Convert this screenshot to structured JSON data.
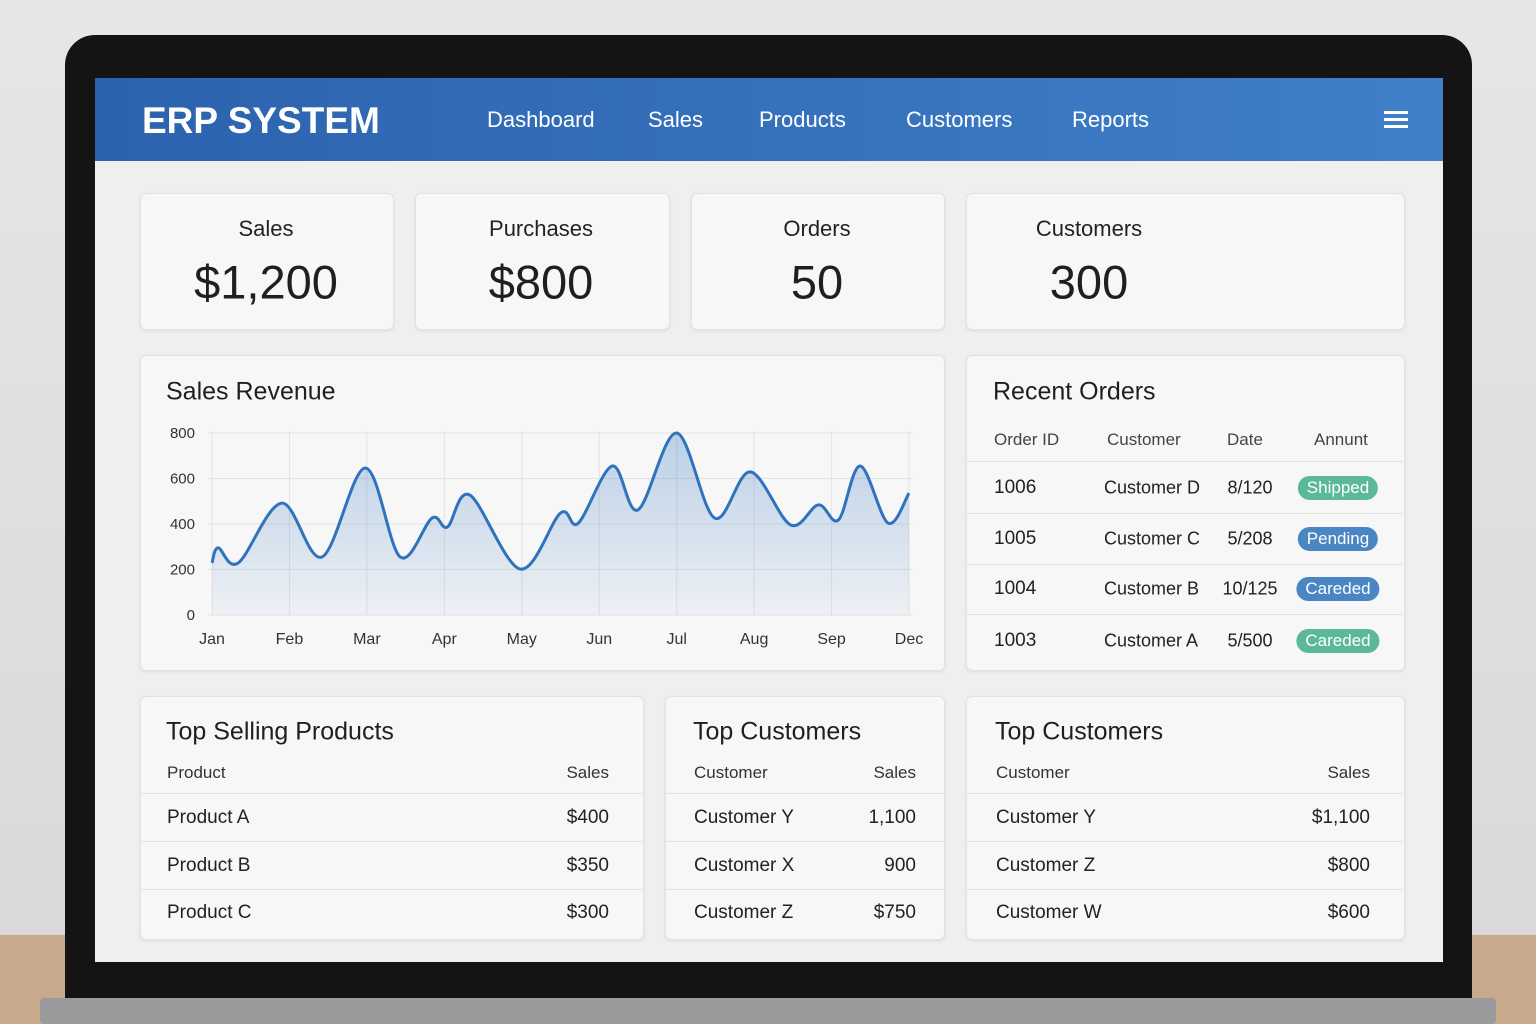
{
  "header": {
    "title": "ERP SYSTEM",
    "nav": [
      "Dashboard",
      "Sales",
      "Products",
      "Customers",
      "Reports"
    ]
  },
  "kpis": [
    {
      "label": "Sales",
      "value": "$1,200"
    },
    {
      "label": "Purchases",
      "value": "$800"
    },
    {
      "label": "Orders",
      "value": "50"
    },
    {
      "label": "Customers",
      "value": "300"
    }
  ],
  "chart_data": {
    "type": "line",
    "title": "Sales Revenue",
    "x": [
      0,
      0.08,
      0.34,
      0.9,
      1.42,
      1.98,
      2.43,
      2.84,
      3.04,
      3.33,
      3.98,
      4.5,
      4.73,
      5.17,
      5.5,
      6.0,
      6.49,
      6.95,
      7.47,
      7.83,
      8.09,
      8.37,
      8.73,
      9
    ],
    "values": [
      229,
      295,
      229,
      492,
      255,
      646,
      255,
      426,
      387,
      527,
      202,
      448,
      404,
      655,
      462,
      800,
      426,
      629,
      396,
      484,
      418,
      655,
      404,
      536
    ],
    "color": "#2f73bd",
    "xlim": [
      0,
      9
    ],
    "xticks": [
      {
        "value": 0,
        "label": "Jan"
      },
      {
        "value": 1,
        "label": "Feb"
      },
      {
        "value": 2,
        "label": "Mar"
      },
      {
        "value": 3,
        "label": "Apr"
      },
      {
        "value": 4,
        "label": "May"
      },
      {
        "value": 5,
        "label": "Jun"
      },
      {
        "value": 6,
        "label": "Jul"
      },
      {
        "value": 7,
        "label": "Aug"
      },
      {
        "value": 8,
        "label": "Sep"
      },
      {
        "value": 9,
        "label": "Dec"
      }
    ],
    "ylim": [
      0,
      800
    ],
    "yticks": [
      0,
      200,
      400,
      600,
      800
    ],
    "grid": true
  },
  "recent_orders": {
    "title": "Recent Orders",
    "columns": [
      "Order ID",
      "Customer",
      "Date",
      "Annunt"
    ],
    "rows": [
      {
        "id": "1006",
        "customer": "Customer D",
        "date": "8/120",
        "status": "Shipped",
        "color": "#5cb89a"
      },
      {
        "id": "1005",
        "customer": "Customer C",
        "date": "5/208",
        "status": "Pending",
        "color": "#4a86c4"
      },
      {
        "id": "1004",
        "customer": "Customer B",
        "date": "10/125",
        "status": "Careded",
        "color": "#4a86c4"
      },
      {
        "id": "1003",
        "customer": "Customer A",
        "date": "5/500",
        "status": "Careded",
        "color": "#5cb89a"
      }
    ]
  },
  "tables": [
    {
      "title": "Top Selling Products",
      "columns": [
        "Product",
        "Sales"
      ],
      "rows": [
        [
          "Product A",
          "$400"
        ],
        [
          "Product B",
          "$350"
        ],
        [
          "Product C",
          "$300"
        ]
      ]
    },
    {
      "title": "Top Customers",
      "columns": [
        "Customer",
        "Sales"
      ],
      "rows": [
        [
          "Customer Y",
          "1,100"
        ],
        [
          "Customer X",
          "900"
        ],
        [
          "Customer Z",
          "$750"
        ]
      ]
    },
    {
      "title": "Top Customers",
      "columns": [
        "Customer",
        "Sales"
      ],
      "rows": [
        [
          "Customer Y",
          "$1,100"
        ],
        [
          "Customer Z",
          "$800"
        ],
        [
          "Customer W",
          "$600"
        ]
      ]
    }
  ]
}
